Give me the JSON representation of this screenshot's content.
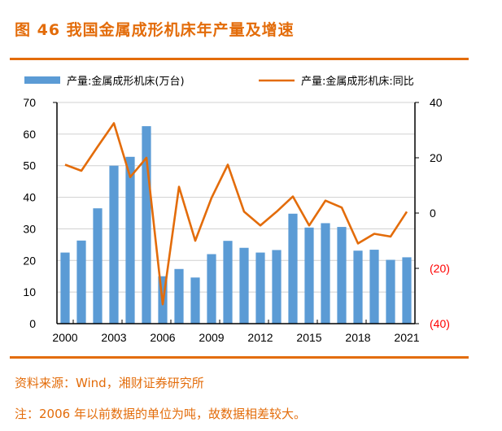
{
  "title": "图 46 我国金属成形机床年产量及增速",
  "source": "资料来源：Wind，湘财证券研究所",
  "note": "注：2006 年以前数据的单位为吨，故数据相差较大。",
  "colors": {
    "bar": "#5b9bd5",
    "line": "#e36c0a",
    "negative_tick": "#ff0000",
    "accent": "#e36c0a"
  },
  "chart_data": {
    "type": "bar+line",
    "legend_position": "top",
    "grid": true,
    "x": [
      2000,
      2001,
      2002,
      2003,
      2004,
      2005,
      2006,
      2007,
      2008,
      2009,
      2010,
      2011,
      2012,
      2013,
      2014,
      2015,
      2016,
      2017,
      2018,
      2019,
      2020,
      2021
    ],
    "x_tick_labels": [
      "2000",
      "2003",
      "2006",
      "2009",
      "2012",
      "2015",
      "2018",
      "2021"
    ],
    "left_axis": {
      "ylim": [
        0,
        70
      ],
      "ticks": [
        "0",
        "10",
        "20",
        "30",
        "40",
        "50",
        "60",
        "70"
      ]
    },
    "right_axis": {
      "ylim": [
        -40,
        40
      ],
      "ticks": [
        "(40)",
        "(20)",
        "0",
        "20",
        "40"
      ]
    },
    "series": [
      {
        "name": "产量:金属成形机床(万台)",
        "type": "bar",
        "axis": "left",
        "values": [
          22.5,
          26.3,
          36.5,
          50,
          52.8,
          62.5,
          15,
          17.3,
          14.6,
          22,
          26.2,
          24,
          22.5,
          23.3,
          34.8,
          30.4,
          31.8,
          30.6,
          23.1,
          23.4,
          20.2,
          21
        ]
      },
      {
        "name": "产量:金属成形机床:同比",
        "type": "line",
        "axis": "right",
        "values": [
          17.5,
          15.3,
          24,
          32.5,
          13,
          20,
          -33,
          9.5,
          -10,
          5.5,
          17.5,
          0.5,
          -4.5,
          0.5,
          6,
          -4.5,
          4.5,
          2,
          -11,
          -7.5,
          -8.5,
          0.5
        ]
      }
    ]
  }
}
